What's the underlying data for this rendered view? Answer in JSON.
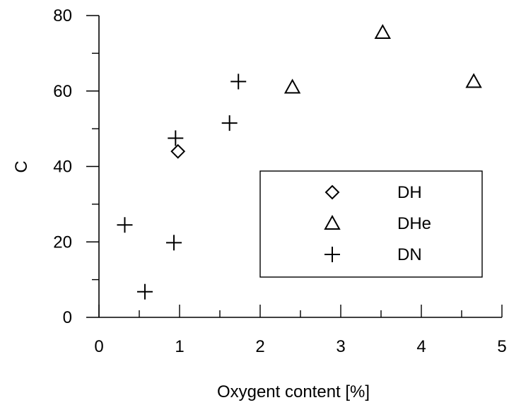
{
  "chart_data": {
    "type": "scatter",
    "xlabel": "Oxygent content [%]",
    "ylabel": "C",
    "xlim": [
      0,
      5
    ],
    "ylim": [
      0,
      80
    ],
    "x_ticks": [
      "0",
      "1",
      "2",
      "3",
      "4",
      "5"
    ],
    "y_ticks": [
      "0",
      "20",
      "40",
      "60",
      "80"
    ],
    "grid": false,
    "legend_position": "center-right",
    "series": [
      {
        "name": "DH",
        "marker": "diamond",
        "points": [
          [
            0.98,
            44
          ]
        ]
      },
      {
        "name": "DHe",
        "marker": "triangle",
        "points": [
          [
            2.4,
            61
          ],
          [
            3.52,
            75.5
          ],
          [
            4.65,
            62.5
          ]
        ]
      },
      {
        "name": "DN",
        "marker": "plus",
        "points": [
          [
            0.95,
            47.5
          ],
          [
            1.62,
            51.5
          ],
          [
            1.73,
            62.5
          ],
          [
            0.32,
            24.5
          ],
          [
            0.93,
            19.8
          ],
          [
            0.57,
            6.8
          ]
        ]
      }
    ]
  }
}
